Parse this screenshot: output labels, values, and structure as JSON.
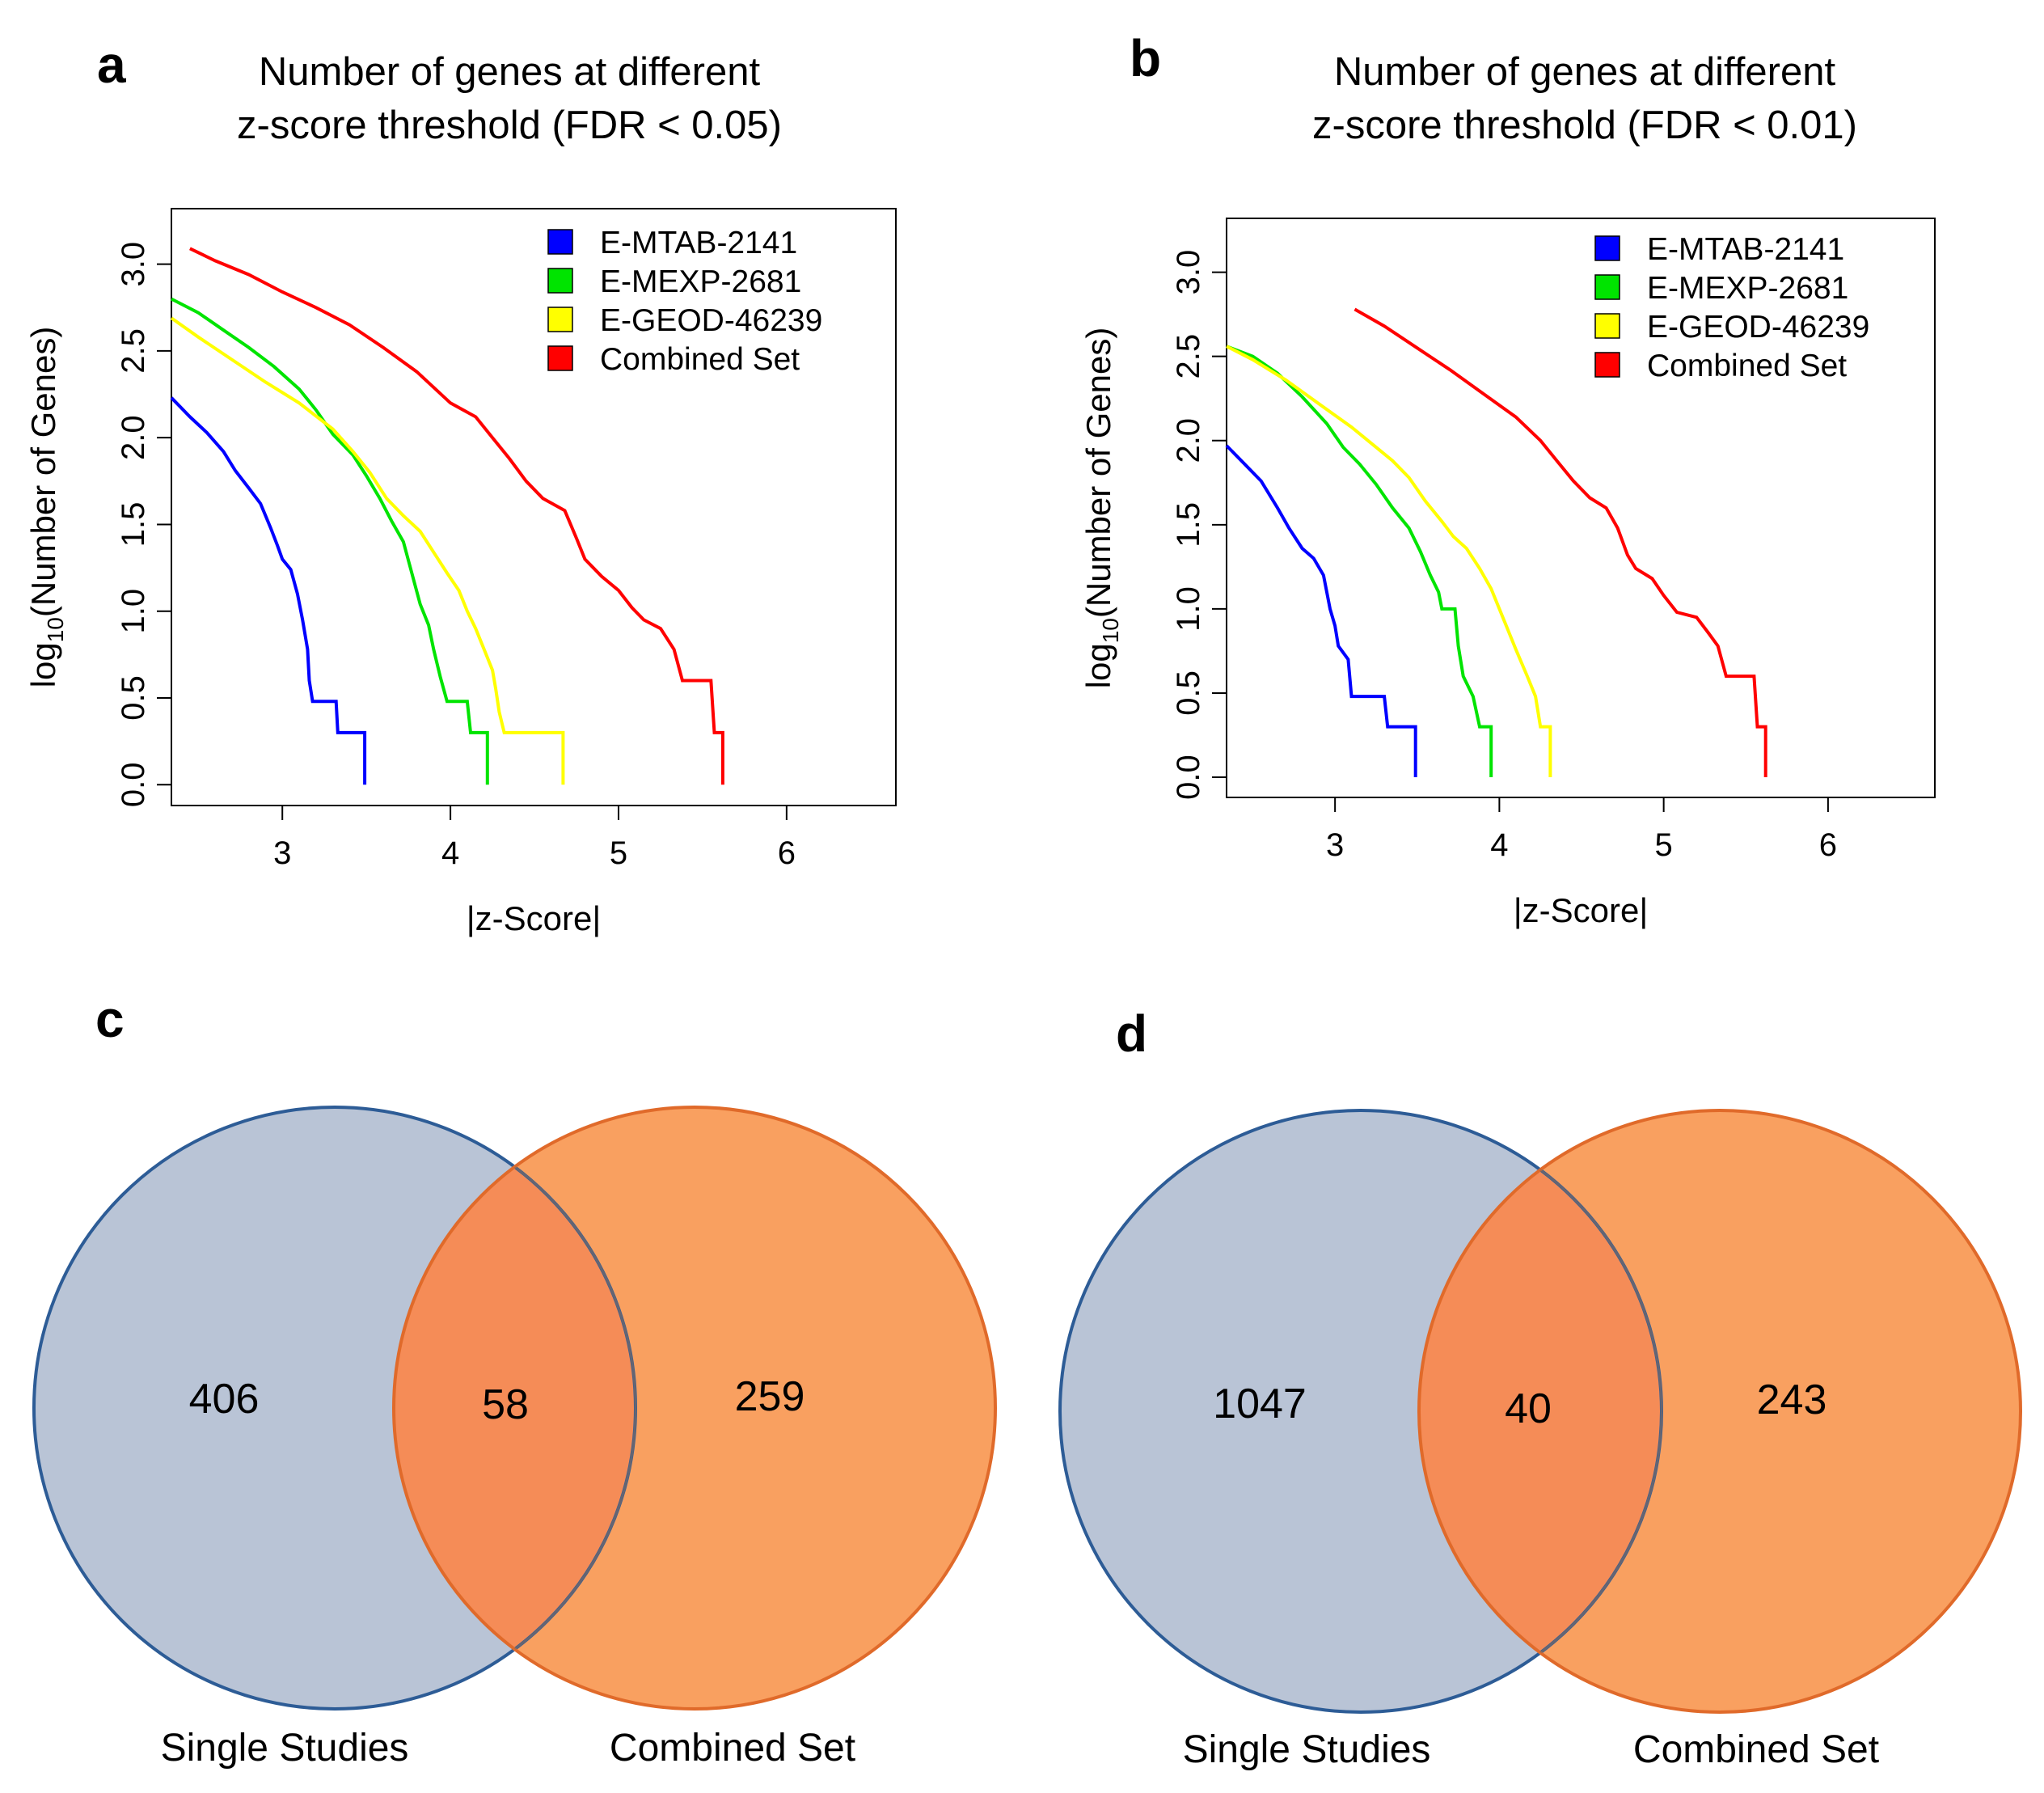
{
  "panels": {
    "a": {
      "letter": "a"
    },
    "b": {
      "letter": "b"
    },
    "c": {
      "letter": "c"
    },
    "d": {
      "letter": "d"
    }
  },
  "colors": {
    "E-MTAB-2141": "#0000ff",
    "E-MEXP-2681": "#00e400",
    "E-GEOD-46239": "#ffff00",
    "Combined Set": "#ff0000",
    "venn_left_fill": "#b9c4d6",
    "venn_left_stroke": "#2d5c96",
    "venn_right_fill": "#f9a060",
    "venn_right_stroke": "#e06a2a",
    "venn_overlap_fill": "#f58c57"
  },
  "chart_data": [
    {
      "id": "a",
      "type": "line",
      "title_line1": "Number of genes at different",
      "title_line2": "z-score threshold  (FDR < 0.05)",
      "xlabel": "|z-Score|",
      "ylabel_prefix": "log",
      "ylabel_sub": "10",
      "ylabel_suffix": "(Number of Genes)",
      "xlim": [
        2.34,
        6.65
      ],
      "ylim": [
        -0.12,
        3.32
      ],
      "xticks": [
        "3",
        "4",
        "5",
        "6"
      ],
      "yticks": [
        "0.0",
        "0.5",
        "1.0",
        "1.5",
        "2.0",
        "2.5",
        "3.0"
      ],
      "legend_position": "top-right",
      "series": [
        {
          "name": "E-MTAB-2141",
          "points": [
            [
              2.34,
              2.23
            ],
            [
              2.45,
              2.12
            ],
            [
              2.55,
              2.03
            ],
            [
              2.65,
              1.92
            ],
            [
              2.72,
              1.81
            ],
            [
              2.8,
              1.71
            ],
            [
              2.87,
              1.62
            ],
            [
              2.93,
              1.48
            ],
            [
              2.97,
              1.38
            ],
            [
              3.0,
              1.3
            ],
            [
              3.05,
              1.24
            ],
            [
              3.09,
              1.1
            ],
            [
              3.12,
              0.95
            ],
            [
              3.15,
              0.78
            ],
            [
              3.16,
              0.6
            ],
            [
              3.18,
              0.48
            ],
            [
              3.32,
              0.48
            ],
            [
              3.33,
              0.3
            ],
            [
              3.49,
              0.3
            ],
            [
              3.49,
              0.0
            ]
          ]
        },
        {
          "name": "E-MEXP-2681",
          "points": [
            [
              2.34,
              2.8
            ],
            [
              2.5,
              2.72
            ],
            [
              2.65,
              2.62
            ],
            [
              2.8,
              2.52
            ],
            [
              2.95,
              2.41
            ],
            [
              3.1,
              2.28
            ],
            [
              3.2,
              2.16
            ],
            [
              3.3,
              2.02
            ],
            [
              3.42,
              1.9
            ],
            [
              3.5,
              1.78
            ],
            [
              3.58,
              1.65
            ],
            [
              3.65,
              1.52
            ],
            [
              3.72,
              1.4
            ],
            [
              3.77,
              1.22
            ],
            [
              3.82,
              1.04
            ],
            [
              3.87,
              0.92
            ],
            [
              3.9,
              0.78
            ],
            [
              3.94,
              0.62
            ],
            [
              3.98,
              0.48
            ],
            [
              4.1,
              0.48
            ],
            [
              4.12,
              0.3
            ],
            [
              4.22,
              0.3
            ],
            [
              4.22,
              0.0
            ]
          ]
        },
        {
          "name": "E-GEOD-46239",
          "points": [
            [
              2.34,
              2.69
            ],
            [
              2.5,
              2.58
            ],
            [
              2.7,
              2.45
            ],
            [
              2.9,
              2.32
            ],
            [
              3.1,
              2.2
            ],
            [
              3.3,
              2.05
            ],
            [
              3.42,
              1.92
            ],
            [
              3.52,
              1.8
            ],
            [
              3.62,
              1.65
            ],
            [
              3.72,
              1.55
            ],
            [
              3.82,
              1.46
            ],
            [
              3.9,
              1.34
            ],
            [
              3.98,
              1.22
            ],
            [
              4.05,
              1.12
            ],
            [
              4.1,
              1.0
            ],
            [
              4.15,
              0.9
            ],
            [
              4.2,
              0.78
            ],
            [
              4.25,
              0.66
            ],
            [
              4.27,
              0.55
            ],
            [
              4.29,
              0.42
            ],
            [
              4.32,
              0.3
            ],
            [
              4.67,
              0.3
            ],
            [
              4.67,
              0.0
            ]
          ]
        },
        {
          "name": "Combined Set",
          "points": [
            [
              2.45,
              3.09
            ],
            [
              2.6,
              3.02
            ],
            [
              2.8,
              2.94
            ],
            [
              3.0,
              2.84
            ],
            [
              3.2,
              2.75
            ],
            [
              3.4,
              2.65
            ],
            [
              3.6,
              2.52
            ],
            [
              3.8,
              2.38
            ],
            [
              4.0,
              2.2
            ],
            [
              4.15,
              2.12
            ],
            [
              4.25,
              2.0
            ],
            [
              4.35,
              1.88
            ],
            [
              4.45,
              1.75
            ],
            [
              4.55,
              1.65
            ],
            [
              4.68,
              1.58
            ],
            [
              4.75,
              1.42
            ],
            [
              4.8,
              1.3
            ],
            [
              4.9,
              1.2
            ],
            [
              5.0,
              1.12
            ],
            [
              5.08,
              1.02
            ],
            [
              5.15,
              0.95
            ],
            [
              5.25,
              0.9
            ],
            [
              5.33,
              0.78
            ],
            [
              5.38,
              0.6
            ],
            [
              5.55,
              0.6
            ],
            [
              5.57,
              0.3
            ],
            [
              5.62,
              0.3
            ],
            [
              5.62,
              0.0
            ]
          ]
        }
      ]
    },
    {
      "id": "b",
      "type": "line",
      "title_line1": "Number of genes at different",
      "title_line2": "z-score threshold  (FDR < 0.01)",
      "xlabel": "|z-Score|",
      "ylabel_prefix": "log",
      "ylabel_sub": "10",
      "ylabel_suffix": "(Number of Genes)",
      "xlim": [
        2.34,
        6.65
      ],
      "ylim": [
        -0.12,
        3.32
      ],
      "xticks": [
        "3",
        "4",
        "5",
        "6"
      ],
      "yticks": [
        "0.0",
        "0.5",
        "1.0",
        "1.5",
        "2.0",
        "2.5",
        "3.0"
      ],
      "legend_position": "top-right",
      "series": [
        {
          "name": "E-MTAB-2141",
          "points": [
            [
              2.34,
              1.97
            ],
            [
              2.45,
              1.86
            ],
            [
              2.55,
              1.76
            ],
            [
              2.65,
              1.6
            ],
            [
              2.72,
              1.48
            ],
            [
              2.8,
              1.36
            ],
            [
              2.87,
              1.3
            ],
            [
              2.93,
              1.2
            ],
            [
              2.97,
              1.0
            ],
            [
              3.0,
              0.9
            ],
            [
              3.02,
              0.78
            ],
            [
              3.08,
              0.7
            ],
            [
              3.1,
              0.48
            ],
            [
              3.3,
              0.48
            ],
            [
              3.32,
              0.3
            ],
            [
              3.49,
              0.3
            ],
            [
              3.49,
              0.0
            ]
          ]
        },
        {
          "name": "E-MEXP-2681",
          "points": [
            [
              2.34,
              2.56
            ],
            [
              2.5,
              2.5
            ],
            [
              2.65,
              2.4
            ],
            [
              2.8,
              2.26
            ],
            [
              2.95,
              2.1
            ],
            [
              3.05,
              1.96
            ],
            [
              3.15,
              1.86
            ],
            [
              3.25,
              1.74
            ],
            [
              3.35,
              1.6
            ],
            [
              3.45,
              1.48
            ],
            [
              3.52,
              1.34
            ],
            [
              3.58,
              1.2
            ],
            [
              3.63,
              1.1
            ],
            [
              3.65,
              1.0
            ],
            [
              3.73,
              1.0
            ],
            [
              3.75,
              0.78
            ],
            [
              3.78,
              0.6
            ],
            [
              3.84,
              0.48
            ],
            [
              3.88,
              0.3
            ],
            [
              3.95,
              0.3
            ],
            [
              3.95,
              0.0
            ]
          ]
        },
        {
          "name": "E-GEOD-46239",
          "points": [
            [
              2.34,
              2.56
            ],
            [
              2.5,
              2.48
            ],
            [
              2.7,
              2.36
            ],
            [
              2.9,
              2.22
            ],
            [
              3.1,
              2.08
            ],
            [
              3.25,
              1.96
            ],
            [
              3.35,
              1.88
            ],
            [
              3.45,
              1.78
            ],
            [
              3.55,
              1.64
            ],
            [
              3.65,
              1.52
            ],
            [
              3.72,
              1.43
            ],
            [
              3.8,
              1.36
            ],
            [
              3.88,
              1.24
            ],
            [
              3.95,
              1.12
            ],
            [
              4.0,
              1.0
            ],
            [
              4.05,
              0.88
            ],
            [
              4.1,
              0.76
            ],
            [
              4.17,
              0.6
            ],
            [
              4.22,
              0.48
            ],
            [
              4.25,
              0.3
            ],
            [
              4.31,
              0.3
            ],
            [
              4.31,
              0.0
            ]
          ]
        },
        {
          "name": "Combined Set",
          "points": [
            [
              3.12,
              2.78
            ],
            [
              3.3,
              2.68
            ],
            [
              3.5,
              2.55
            ],
            [
              3.7,
              2.42
            ],
            [
              3.9,
              2.28
            ],
            [
              4.1,
              2.14
            ],
            [
              4.25,
              2.0
            ],
            [
              4.35,
              1.88
            ],
            [
              4.45,
              1.76
            ],
            [
              4.55,
              1.66
            ],
            [
              4.65,
              1.6
            ],
            [
              4.72,
              1.48
            ],
            [
              4.78,
              1.32
            ],
            [
              4.83,
              1.24
            ],
            [
              4.93,
              1.18
            ],
            [
              5.0,
              1.08
            ],
            [
              5.08,
              0.98
            ],
            [
              5.2,
              0.95
            ],
            [
              5.27,
              0.86
            ],
            [
              5.33,
              0.78
            ],
            [
              5.38,
              0.6
            ],
            [
              5.55,
              0.6
            ],
            [
              5.57,
              0.3
            ],
            [
              5.62,
              0.3
            ],
            [
              5.62,
              0.0
            ]
          ]
        }
      ]
    },
    {
      "id": "c",
      "type": "venn",
      "sets": [
        {
          "name": "Single Studies",
          "only": "406"
        },
        {
          "name": "Combined Set",
          "only": "259"
        }
      ],
      "intersection": "58"
    },
    {
      "id": "d",
      "type": "venn",
      "sets": [
        {
          "name": "Single Studies",
          "only": "1047"
        },
        {
          "name": "Combined Set",
          "only": "243"
        }
      ],
      "intersection": "40"
    }
  ]
}
